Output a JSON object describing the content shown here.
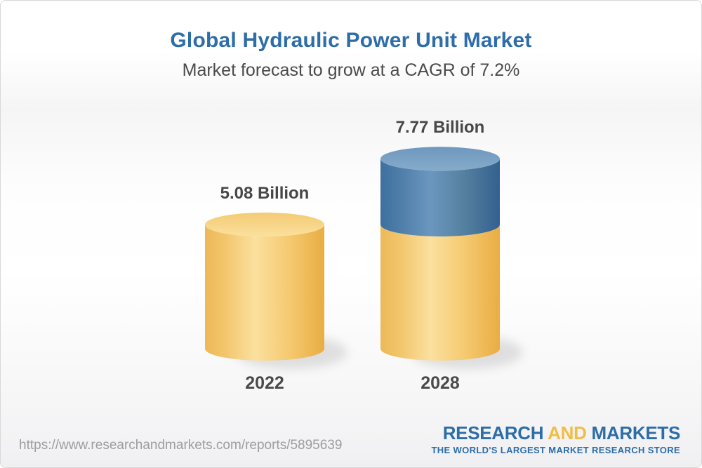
{
  "header": {
    "title": "Global Hydraulic Power Unit Market",
    "subtitle": "Market forecast to grow at a CAGR of 7.2%"
  },
  "chart_data": {
    "type": "bar",
    "style": "3d-cylinder",
    "title": "Global Hydraulic Power Unit Market",
    "subtitle": "Market forecast to grow at a CAGR of 7.2%",
    "cagr_percent": 7.2,
    "unit": "Billion",
    "categories": [
      "2022",
      "2028"
    ],
    "values": [
      5.08,
      7.77
    ],
    "value_labels": [
      "5.08 Billion",
      "7.77 Billion"
    ],
    "series_segments": [
      [
        {
          "value": 5.08,
          "color_key": "gold"
        }
      ],
      [
        {
          "value": 5.08,
          "color_key": "gold"
        },
        {
          "value": 2.69,
          "color_key": "blue"
        }
      ]
    ],
    "ylim": [
      0,
      8.5
    ],
    "grid": false,
    "legend": false,
    "colors": {
      "gold_segment": "#f3c76f",
      "blue_segment": "#5586b0",
      "value_text": "#474747",
      "category_text": "#4a4a4a"
    }
  },
  "footer": {
    "url": "https://www.researchandmarkets.com/reports/5895639",
    "logo": {
      "part1": "RESEARCH",
      "part2": "AND",
      "part3": "MARKETS",
      "tagline": "THE WORLD'S LARGEST MARKET RESEARCH STORE"
    }
  },
  "colors": {
    "title": "#2d6da8",
    "subtitle": "#4b4b4b",
    "url_text": "#9d9d9d",
    "logo_blue": "#2d6da8",
    "logo_gold": "#f2bd44",
    "frame_border": "#d8d8d8"
  }
}
